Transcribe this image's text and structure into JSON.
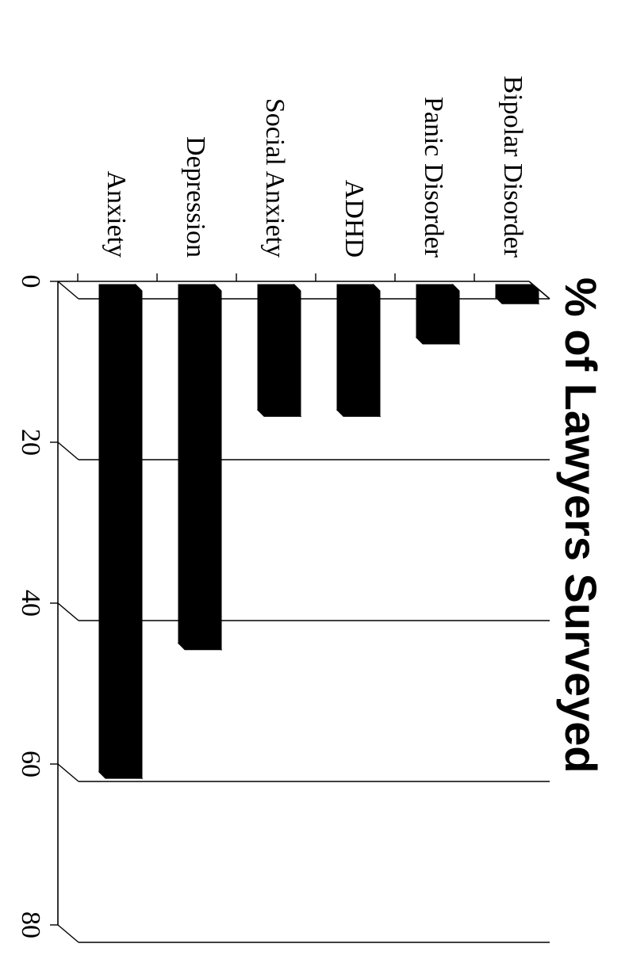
{
  "chart_data": {
    "type": "bar",
    "title": "% of Lawyers Surveyed",
    "categories": [
      "Anxiety",
      "Depression",
      "Social Anxiety",
      "ADHD",
      "Panic Disorder",
      "Bipolar Disorder"
    ],
    "values": [
      61,
      45,
      16,
      16,
      7,
      2
    ],
    "ylim": [
      0,
      80
    ],
    "yticks": [
      "0",
      "20",
      "40",
      "60",
      "80"
    ],
    "bar_color": "#000000",
    "grid": true
  }
}
